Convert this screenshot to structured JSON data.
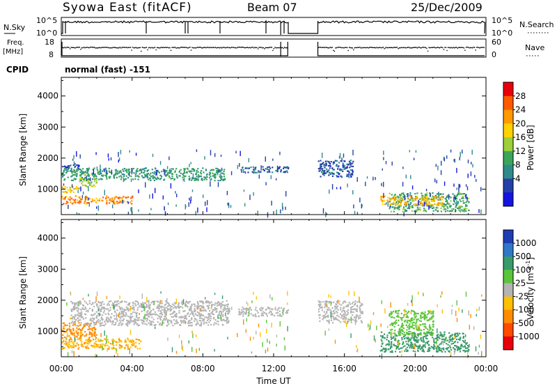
{
  "header": {
    "station": "Syowa East (fitACF)",
    "beam": "Beam 07",
    "date": "25/Dec/2009"
  },
  "panels": {
    "nsky_label": "N.Sky",
    "nsky_ticks": [
      "10^5",
      "10^0"
    ],
    "nsearch_label": "N.Search",
    "freq_label_top": "Freq.",
    "freq_label_bot": "[MHz]",
    "freq_ticks": [
      "18",
      "8"
    ],
    "nave_ticks": [
      "60",
      "0"
    ],
    "nave_label": "Nave",
    "cpid_label": "CPID",
    "cpid_value": "normal (fast) -151"
  },
  "colorbars": {
    "power": {
      "label": "Power [dB]",
      "ticks": [
        "28",
        "24",
        "20",
        "16",
        "12",
        "8",
        "4"
      ],
      "colors": [
        "#e8000b",
        "#ff5a00",
        "#ff9a00",
        "#ffd200",
        "#9ccf3a",
        "#3aa55a",
        "#2e8b8b",
        "#2440a8",
        "#1414e0"
      ]
    },
    "velocity": {
      "label": "Velocity [m s",
      "label_sup": "-1",
      "label_end": "]",
      "ticks": [
        "1000",
        "500",
        "100",
        "25",
        "-25",
        "-100",
        "-500",
        "-1000"
      ],
      "colors": [
        "#1e3cb4",
        "#2f78c8",
        "#3a9b6a",
        "#5cc43a",
        "#b4b4b4",
        "#ffc000",
        "#ff8c00",
        "#ff4a00",
        "#e8000b"
      ]
    }
  },
  "chart_data": [
    {
      "type": "heatmap",
      "name": "power",
      "ylabel": "Slant Range [km]",
      "xlim": [
        "00:00",
        "24:00"
      ],
      "ylim": [
        180,
        4600
      ],
      "yticks": [
        1000,
        2000,
        3000,
        4000
      ],
      "regions": [
        {
          "t": [
            0.0,
            4.0
          ],
          "range": [
            550,
            800
          ],
          "value": 27
        },
        {
          "t": [
            0.0,
            1.0
          ],
          "range": [
            900,
            1100
          ],
          "value": 22
        },
        {
          "t": [
            1.0,
            2.0
          ],
          "range": [
            1100,
            1500
          ],
          "value": 18
        },
        {
          "t": [
            0.0,
            9.2
          ],
          "range": [
            1300,
            1700
          ],
          "value": 12
        },
        {
          "t": [
            0.0,
            1.0
          ],
          "range": [
            1700,
            1850
          ],
          "value": 5
        },
        {
          "t": [
            10.0,
            12.8
          ],
          "range": [
            1550,
            1750
          ],
          "value": 8
        },
        {
          "t": [
            14.5,
            16.5
          ],
          "range": [
            1400,
            1950
          ],
          "value": 7
        },
        {
          "t": [
            18.5,
            23.0
          ],
          "range": [
            300,
            900
          ],
          "value": 14
        },
        {
          "t": [
            18.0,
            21.5
          ],
          "range": [
            500,
            800
          ],
          "value": 24
        }
      ]
    },
    {
      "type": "heatmap",
      "name": "velocity",
      "ylabel": "Slant Range [km]",
      "xlabel": "Time UT",
      "xlim": [
        "00:00",
        "24:00"
      ],
      "ylim": [
        180,
        4600
      ],
      "yticks": [
        1000,
        2000,
        3000,
        4000
      ],
      "xticks": [
        "00:00",
        "04:00",
        "08:00",
        "12:00",
        "16:00",
        "20:00",
        "00:00"
      ],
      "regions": [
        {
          "t": [
            0.0,
            4.5
          ],
          "range": [
            450,
            800
          ],
          "value": -80
        },
        {
          "t": [
            0.0,
            2.0
          ],
          "range": [
            800,
            1300
          ],
          "value": -300
        },
        {
          "t": [
            0.5,
            9.5
          ],
          "range": [
            1200,
            2000
          ],
          "value": 0
        },
        {
          "t": [
            10.0,
            12.8
          ],
          "range": [
            1500,
            1800
          ],
          "value": 0
        },
        {
          "t": [
            14.5,
            17.0
          ],
          "range": [
            1300,
            2000
          ],
          "value": 0
        },
        {
          "t": [
            18.0,
            23.0
          ],
          "range": [
            350,
            1000
          ],
          "value": 200
        },
        {
          "t": [
            18.5,
            21.0
          ],
          "range": [
            900,
            1700
          ],
          "value": 60
        }
      ]
    }
  ]
}
